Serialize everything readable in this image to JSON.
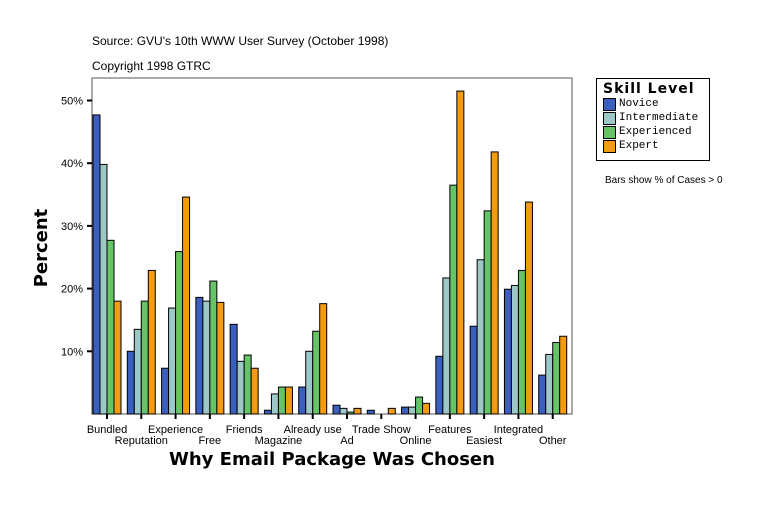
{
  "header": {
    "source": "Source: GVU's 10th WWW User Survey (October 1998)",
    "copyright": "Copyright 1998 GTRC"
  },
  "legend": {
    "title": "Skill Level",
    "note": "Bars show % of Cases > 0"
  },
  "colors": {
    "Novice": "#3a5fbf",
    "Intermediate": "#9cc8c8",
    "Experienced": "#66c466",
    "Expert": "#f39c12"
  },
  "chart_data": {
    "type": "bar",
    "title": "",
    "xlabel": "Why Email Package Was Chosen",
    "ylabel": "Percent",
    "ylim": [
      0,
      53
    ],
    "yticks": [
      "10%",
      "20%",
      "30%",
      "40%",
      "50%"
    ],
    "ytick_values": [
      10,
      20,
      30,
      40,
      50
    ],
    "grid": false,
    "legend_placement": "right",
    "categories": [
      "Bundled",
      "Reputation",
      "Experience",
      "Free",
      "Friends",
      "Magazine",
      "Already use",
      "Ad",
      "Trade Show",
      "Online",
      "Features",
      "Easiest",
      "Integrated",
      "Other"
    ],
    "series": [
      {
        "name": "Novice",
        "values": [
          47.7,
          10.0,
          7.3,
          18.6,
          14.3,
          0.6,
          4.3,
          1.4,
          0.6,
          1.1,
          9.2,
          14.0,
          19.9,
          6.2
        ]
      },
      {
        "name": "Intermediate",
        "values": [
          39.8,
          13.5,
          16.9,
          18.0,
          8.4,
          3.2,
          10.0,
          0.9,
          0,
          1.1,
          21.7,
          24.6,
          20.5,
          9.5
        ]
      },
      {
        "name": "Experienced",
        "values": [
          27.7,
          18.0,
          25.9,
          21.2,
          9.4,
          4.3,
          13.2,
          0.3,
          0,
          2.7,
          36.5,
          32.4,
          22.9,
          11.4
        ]
      },
      {
        "name": "Expert",
        "values": [
          18.0,
          22.9,
          34.6,
          17.8,
          7.3,
          4.3,
          17.6,
          0.9,
          0.9,
          1.7,
          51.5,
          41.8,
          33.8,
          12.4
        ]
      }
    ]
  }
}
